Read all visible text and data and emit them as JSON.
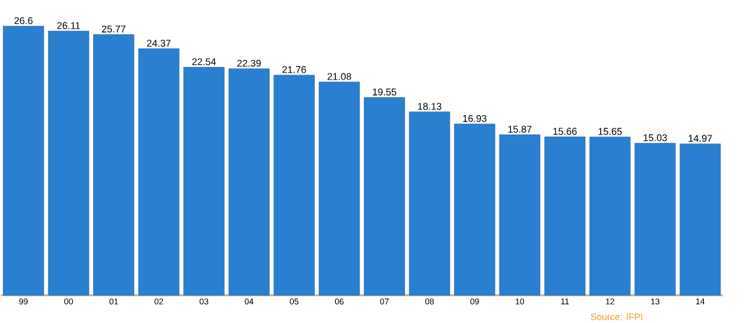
{
  "chart_data": {
    "type": "bar",
    "categories": [
      "99",
      "00",
      "01",
      "02",
      "03",
      "04",
      "05",
      "06",
      "07",
      "08",
      "09",
      "10",
      "11",
      "12",
      "13",
      "14"
    ],
    "values": [
      26.6,
      26.11,
      25.77,
      24.37,
      22.54,
      22.39,
      21.76,
      21.08,
      19.55,
      18.13,
      16.93,
      15.87,
      15.66,
      15.65,
      15.03,
      14.97
    ],
    "color": "#2a7fd0",
    "data_labels": true,
    "annotations": [
      "Source: IFPI"
    ]
  }
}
